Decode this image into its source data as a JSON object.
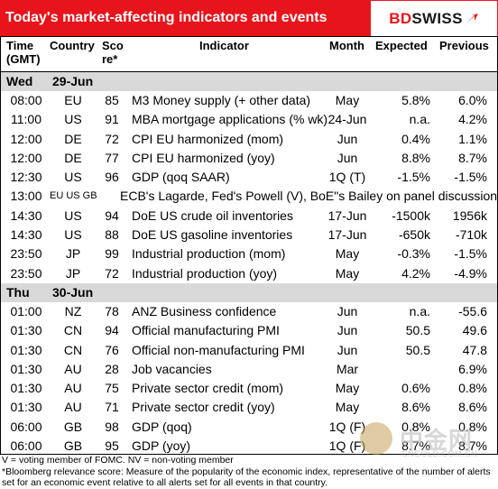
{
  "header": {
    "title": "Today's market-affecting indicators and events",
    "logo_bd": "BD",
    "logo_swiss": "SWISS"
  },
  "columns": {
    "time_line1": "Time",
    "time_line2": "(GMT)",
    "country": "Country",
    "score_line1": "Sco",
    "score_line2": "re*",
    "indicator": "Indicator",
    "month": "Month",
    "expected": "Expected",
    "previous": "Previous"
  },
  "days": [
    {
      "weekday": "Wed",
      "date": "29-Jun",
      "rows": [
        {
          "time": "08:00",
          "country": "EU",
          "score": "85",
          "indicator": "M3 Money supply (+ other data)",
          "month": "May",
          "expected": "5.8%",
          "previous": "6.0%"
        },
        {
          "time": "11:00",
          "country": "US",
          "score": "91",
          "indicator": "MBA mortgage applications (% wk)",
          "month": "24-Jun",
          "expected": "n.a.",
          "previous": "4.2%"
        },
        {
          "time": "12:00",
          "country": "DE",
          "score": "72",
          "indicator": "CPI EU harmonized (mom)",
          "month": "Jun",
          "expected": "0.4%",
          "previous": "1.1%"
        },
        {
          "time": "12:00",
          "country": "DE",
          "score": "77",
          "indicator": "CPI EU harmonized (yoy)",
          "month": "Jun",
          "expected": "8.8%",
          "previous": "8.7%"
        },
        {
          "time": "12:30",
          "country": "US",
          "score": "96",
          "indicator": "GDP (qoq SAAR)",
          "month": "1Q (T)",
          "expected": "-1.5%",
          "previous": "-1.5%"
        },
        {
          "time": "13:00",
          "country": "EU US GB",
          "score": "",
          "indicator": "ECB's Lagarde, Fed's Powell (V), BoE\"s Bailey on panel discussion",
          "month": "",
          "expected": "",
          "previous": "",
          "special": true
        },
        {
          "time": "14:30",
          "country": "US",
          "score": "94",
          "indicator": "DoE US crude oil inventories",
          "month": "17-Jun",
          "expected": "-1500k",
          "previous": "1956k"
        },
        {
          "time": "14:30",
          "country": "US",
          "score": "88",
          "indicator": "DoE US gasoline inventories",
          "month": "17-Jun",
          "expected": "-650k",
          "previous": "-710k"
        },
        {
          "time": "23:50",
          "country": "JP",
          "score": "99",
          "indicator": "Industrial production (mom)",
          "month": "May",
          "expected": "-0.3%",
          "previous": "-1.5%"
        },
        {
          "time": "23:50",
          "country": "JP",
          "score": "72",
          "indicator": "Industrial production (yoy)",
          "month": "May",
          "expected": "4.2%",
          "previous": "-4.9%"
        }
      ]
    },
    {
      "weekday": "Thu",
      "date": "30-Jun",
      "rows": [
        {
          "time": "01:00",
          "country": "NZ",
          "score": "78",
          "indicator": "ANZ Business confidence",
          "month": "Jun",
          "expected": "n.a.",
          "previous": "-55.6"
        },
        {
          "time": "01:30",
          "country": "CN",
          "score": "94",
          "indicator": "Official manufacturing PMI",
          "month": "Jun",
          "expected": "50.5",
          "previous": "49.6"
        },
        {
          "time": "01:30",
          "country": "CN",
          "score": "76",
          "indicator": "Official non-manufacturing PMI",
          "month": "Jun",
          "expected": "50.5",
          "previous": "47.8"
        },
        {
          "time": "01:30",
          "country": "AU",
          "score": "28",
          "indicator": "Job vacancies",
          "month": "Mar",
          "expected": "",
          "previous": "6.9%"
        },
        {
          "time": "01:30",
          "country": "AU",
          "score": "75",
          "indicator": "Private sector credit (mom)",
          "month": "May",
          "expected": "0.6%",
          "previous": "0.8%"
        },
        {
          "time": "01:30",
          "country": "AU",
          "score": "71",
          "indicator": "Private sector credit (yoy)",
          "month": "May",
          "expected": "8.6%",
          "previous": "8.6%"
        },
        {
          "time": "06:00",
          "country": "GB",
          "score": "98",
          "indicator": "GDP (qoq)",
          "month": "1Q (F)",
          "expected": "0.8%",
          "previous": "0.8%"
        },
        {
          "time": "06:00",
          "country": "GB",
          "score": "95",
          "indicator": "GDP (yoy)",
          "month": "1Q (F)",
          "expected": "8.7%",
          "previous": "8.7%"
        }
      ]
    }
  ],
  "footnotes": {
    "line1": "V = voting member of FOMC. NV = non-voting member",
    "line2": "*Bloomberg relevance score:  Measure of the popularity of the economic index, representative of the number of alerts set for an economic event relative to all alerts set for all events in that country."
  },
  "watermark": {
    "text": "中金网",
    "url": "CNGOLD.COM.CN"
  },
  "colors": {
    "brand_red": "#e8141b",
    "day_band": "#d9d9d9"
  }
}
